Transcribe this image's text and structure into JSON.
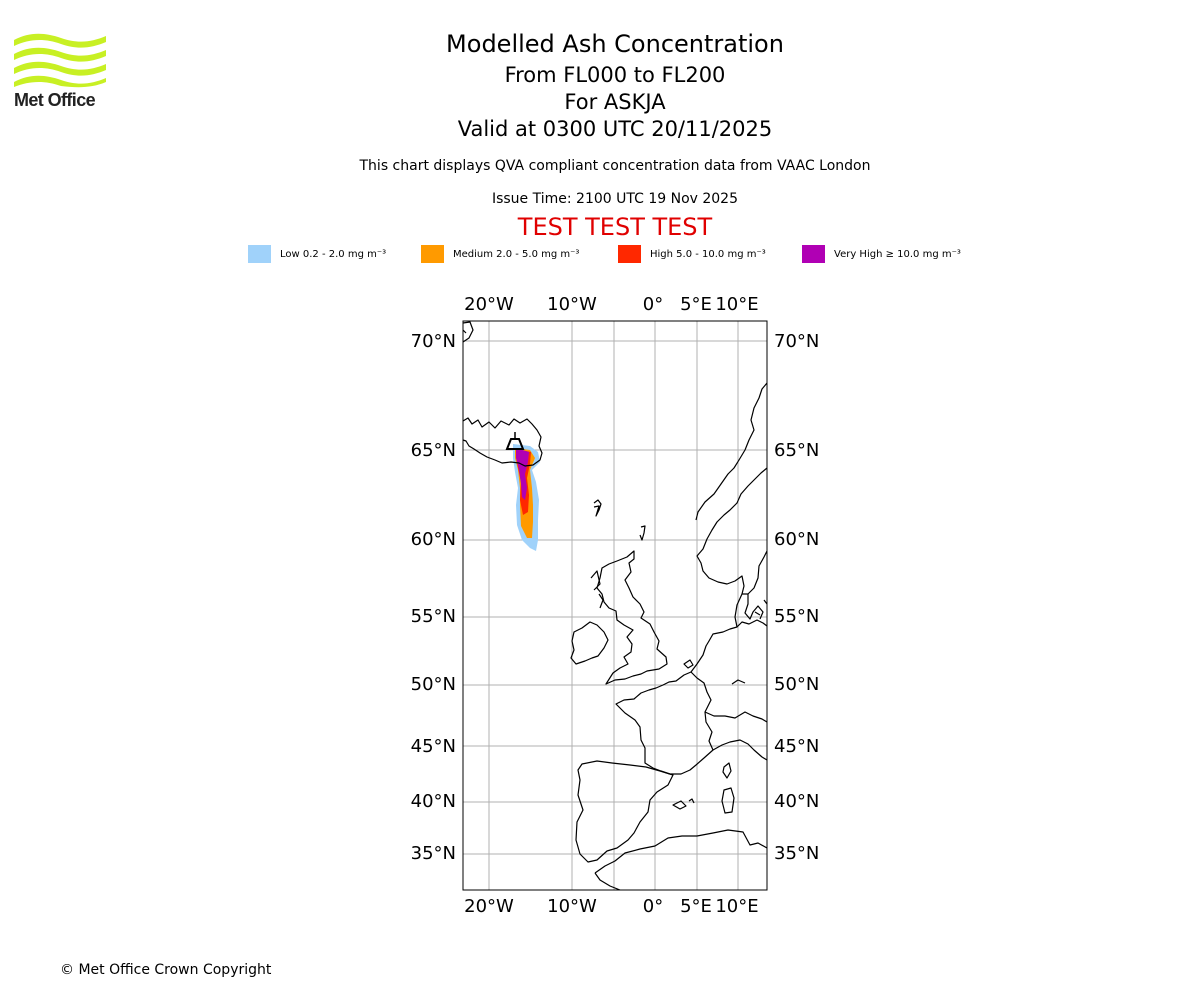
{
  "logo": {
    "text": "Met Office",
    "colors": {
      "waves": "#c8f024",
      "text": "#222222"
    }
  },
  "header": {
    "title": "Modelled Ash Concentration",
    "levels": "From FL000 to FL200",
    "volcano": "For ASKJA",
    "valid": "Valid at 0300 UTC 20/11/2025",
    "description": "This chart displays QVA compliant concentration data from VAAC London",
    "issue_time": "Issue Time: 2100 UTC 19 Nov 2025",
    "test_banner": "TEST TEST TEST"
  },
  "legend": [
    {
      "label": "Low 0.2 - 2.0 mg m⁻³",
      "color": "#a0d2fa"
    },
    {
      "label": "Medium 2.0 - 5.0 mg m⁻³",
      "color": "#ff9a00"
    },
    {
      "label": "High 5.0 - 10.0 mg m⁻³",
      "color": "#ff2800"
    },
    {
      "label": "Very High ≥ 10.0 mg m⁻³",
      "color": "#b000b4"
    }
  ],
  "map": {
    "lon_labels": [
      "20°W",
      "10°W",
      "0°",
      "5°E",
      "10°E"
    ],
    "lat_labels": [
      "70°N",
      "65°N",
      "60°N",
      "55°N",
      "50°N",
      "45°N",
      "40°N",
      "35°N"
    ],
    "grid_color": "#b0b0b0",
    "coast_color": "#000000"
  },
  "footer": {
    "copyright": "© Met Office Crown Copyright"
  }
}
